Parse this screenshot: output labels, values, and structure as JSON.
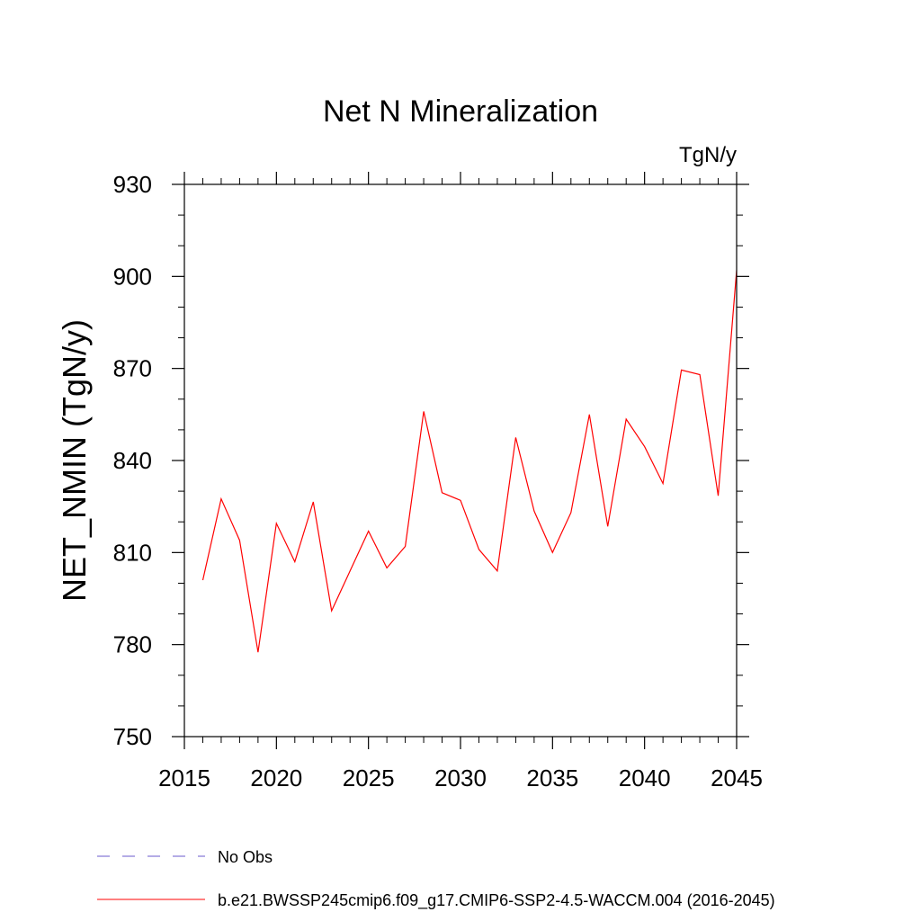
{
  "chart_data": {
    "type": "line",
    "title": "Net N Mineralization",
    "units_label": "TgN/y",
    "xlabel": "",
    "ylabel": "NET_NMIN  (TgN/y)",
    "xlim": [
      2015,
      2045
    ],
    "ylim": [
      750,
      930
    ],
    "x_ticks": [
      2015,
      2020,
      2025,
      2030,
      2035,
      2040,
      2045
    ],
    "y_ticks": [
      750,
      780,
      810,
      840,
      870,
      900,
      930
    ],
    "grid": false,
    "legend_position": "bottom-left",
    "series": [
      {
        "name": "b.e21.BWSSP245cmip6.f09_g17.CMIP6-SSP2-4.5-WACCM.004 (2016-2045)",
        "color": "#ff0000",
        "line_style": "solid",
        "x": [
          2016,
          2017,
          2018,
          2019,
          2020,
          2021,
          2022,
          2023,
          2024,
          2025,
          2026,
          2027,
          2028,
          2029,
          2030,
          2031,
          2032,
          2033,
          2034,
          2035,
          2036,
          2037,
          2038,
          2039,
          2040,
          2041,
          2042,
          2043,
          2044,
          2045
        ],
        "y": [
          801,
          827.5,
          814,
          777.5,
          819.5,
          807,
          826.5,
          791,
          804,
          817,
          805,
          812,
          856,
          829.5,
          827,
          811,
          804,
          847.5,
          823.5,
          810,
          823,
          855,
          818.5,
          853.5,
          844.5,
          832.5,
          869.5,
          868,
          828.5,
          902
        ]
      }
    ],
    "legend": [
      {
        "label": "No Obs",
        "color": "#6a5acd",
        "line_style": "dashed"
      },
      {
        "label": "b.e21.BWSSP245cmip6.f09_g17.CMIP6-SSP2-4.5-WACCM.004 (2016-2045)",
        "color": "#ff0000",
        "line_style": "solid"
      }
    ]
  }
}
